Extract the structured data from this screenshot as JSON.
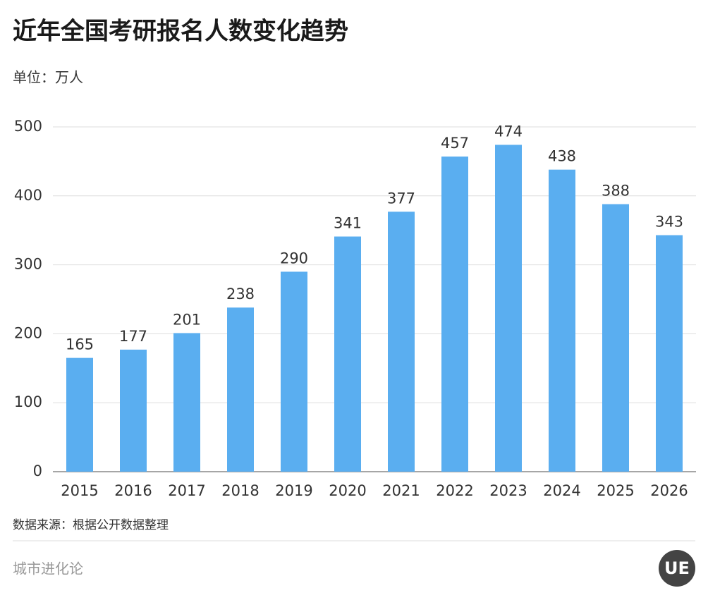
{
  "chart_data": {
    "type": "bar",
    "title": "近年全国考研报名人数变化趋势",
    "unit": "单位：万人",
    "categories": [
      "2015",
      "2016",
      "2017",
      "2018",
      "2019",
      "2020",
      "2021",
      "2022",
      "2023",
      "2024",
      "2025",
      "2026"
    ],
    "values": [
      165,
      177,
      201,
      238,
      290,
      341,
      377,
      457,
      474,
      438,
      388,
      343
    ],
    "color": "#5aaef0",
    "ylim": [
      0,
      500
    ],
    "yticks": [
      0,
      100,
      200,
      300,
      400,
      500
    ],
    "grid": true,
    "source": "数据来源：根据公开数据整理",
    "footer": "城市进化论",
    "logo": "UE"
  }
}
